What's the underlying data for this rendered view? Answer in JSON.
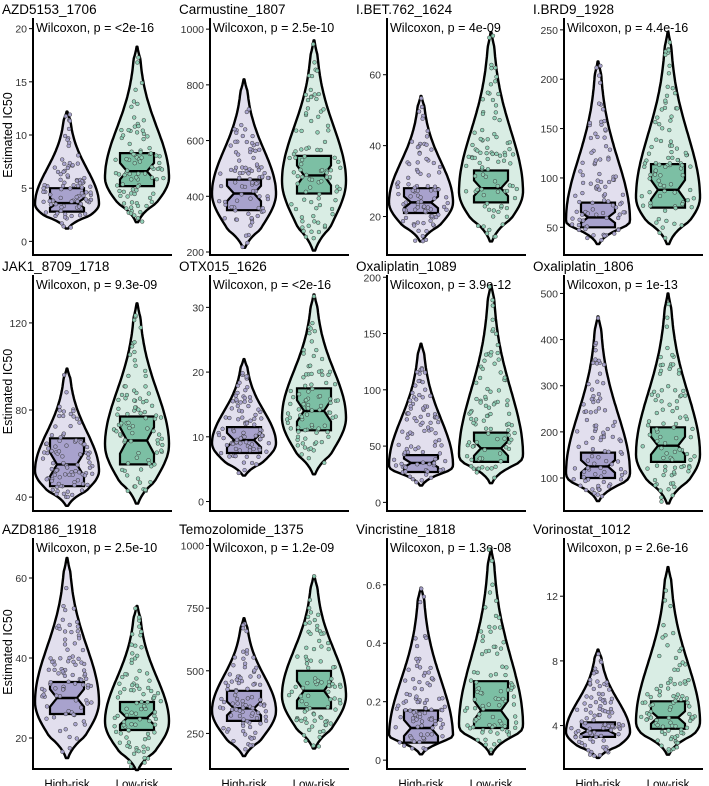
{
  "figure": {
    "y_axis_label": "Estimated IC50",
    "group_labels": [
      "High-risk",
      "Low-risk"
    ]
  },
  "colors": {
    "high_fill": "#a8a2cd",
    "high_violin": "#e2dfee",
    "high_point": "#a6a1cc",
    "low_fill": "#7cbfa4",
    "low_violin": "#d9ede4",
    "low_point": "#8ed0b5",
    "outline": "#000000"
  },
  "chart_data": [
    {
      "type": "violin",
      "title": "AZD5153_1706",
      "test": "Wilcoxon, p = <2e-16",
      "ylabel": "Estimated IC50",
      "ylim": [
        -1,
        21
      ],
      "yticks": [
        0,
        5,
        10,
        15,
        20
      ],
      "categories": [
        "High-risk",
        "Low-risk"
      ],
      "series": [
        {
          "name": "High-risk",
          "min": 1.2,
          "q1": 2.8,
          "median": 3.6,
          "q3": 5,
          "max": 12.2,
          "mode": 3.5
        },
        {
          "name": "Low-risk",
          "min": 1.8,
          "q1": 5.2,
          "median": 6.6,
          "q3": 8.3,
          "max": 18.3,
          "mode": 6
        }
      ]
    },
    {
      "type": "violin",
      "title": "Carmustine_1807",
      "test": "Wilcoxon, p = 2.5e-10",
      "ylabel": "",
      "ylim": [
        200,
        1040
      ],
      "yticks": [
        200,
        400,
        600,
        800,
        1000
      ],
      "categories": [
        "High-risk",
        "Low-risk"
      ],
      "series": [
        {
          "name": "High-risk",
          "min": 215,
          "q1": 350,
          "median": 410,
          "q3": 460,
          "max": 820,
          "mode": 410
        },
        {
          "name": "Low-risk",
          "min": 205,
          "q1": 410,
          "median": 475,
          "q3": 545,
          "max": 960,
          "mode": 455
        }
      ]
    },
    {
      "type": "violin",
      "title": "I.BET.762_1624",
      "test": "Wilcoxon, p = 4e-09",
      "ylabel": "",
      "ylim": [
        10,
        76
      ],
      "yticks": [
        20,
        40,
        60
      ],
      "categories": [
        "High-risk",
        "Low-risk"
      ],
      "series": [
        {
          "name": "High-risk",
          "min": 13,
          "q1": 21,
          "median": 24,
          "q3": 28,
          "max": 54,
          "mode": 24
        },
        {
          "name": "Low-risk",
          "min": 13,
          "q1": 24,
          "median": 28,
          "q3": 33,
          "max": 72,
          "mode": 27
        }
      ]
    },
    {
      "type": "violin",
      "title": "I.BRD9_1928",
      "test": "Wilcoxon, p = 4.4e-16",
      "ylabel": "",
      "ylim": [
        25,
        262
      ],
      "yticks": [
        50,
        100,
        150,
        200,
        250
      ],
      "categories": [
        "High-risk",
        "Low-risk"
      ],
      "series": [
        {
          "name": "High-risk",
          "min": 33,
          "q1": 50,
          "median": 60,
          "q3": 75,
          "max": 218,
          "mode": 57
        },
        {
          "name": "Low-risk",
          "min": 33,
          "q1": 70,
          "median": 88,
          "q3": 114,
          "max": 248,
          "mode": 80
        }
      ]
    },
    {
      "type": "violin",
      "title": "JAK1_8709_1718",
      "test": "Wilcoxon, p = 9.3e-09",
      "ylabel": "Estimated IC50",
      "ylim": [
        35,
        142
      ],
      "yticks": [
        40,
        80,
        120
      ],
      "categories": [
        "High-risk",
        "Low-risk"
      ],
      "series": [
        {
          "name": "High-risk",
          "min": 36,
          "q1": 45,
          "median": 55,
          "q3": 67,
          "max": 99,
          "mode": 52
        },
        {
          "name": "Low-risk",
          "min": 37,
          "q1": 55,
          "median": 66,
          "q3": 77,
          "max": 129,
          "mode": 64
        }
      ]
    },
    {
      "type": "violin",
      "title": "OTX015_1626",
      "test": "Wilcoxon, p = <2e-16",
      "ylabel": "",
      "ylim": [
        -1,
        35
      ],
      "yticks": [
        0,
        10,
        20,
        30
      ],
      "categories": [
        "High-risk",
        "Low-risk"
      ],
      "series": [
        {
          "name": "High-risk",
          "min": 4,
          "q1": 7.5,
          "median": 9.5,
          "q3": 11.5,
          "max": 22,
          "mode": 9
        },
        {
          "name": "Low-risk",
          "min": 4.2,
          "q1": 11,
          "median": 14,
          "q3": 17.5,
          "max": 32,
          "mode": 13
        }
      ]
    },
    {
      "type": "violin",
      "title": "Oxaliplatin_1089",
      "test": "Wilcoxon, p = 3.9e-12",
      "ylabel": "",
      "ylim": [
        -5,
        202
      ],
      "yticks": [
        0,
        50,
        100,
        150,
        200
      ],
      "categories": [
        "High-risk",
        "Low-risk"
      ],
      "series": [
        {
          "name": "High-risk",
          "min": 15,
          "q1": 27,
          "median": 35,
          "q3": 42,
          "max": 141,
          "mode": 33
        },
        {
          "name": "Low-risk",
          "min": 17,
          "q1": 36,
          "median": 48,
          "q3": 62,
          "max": 193,
          "mode": 42
        }
      ]
    },
    {
      "type": "violin",
      "title": "Oxaliplatin_1806",
      "test": "Wilcoxon, p = 1e-13",
      "ylabel": "",
      "ylim": [
        35,
        540
      ],
      "yticks": [
        100,
        200,
        300,
        400,
        500
      ],
      "categories": [
        "High-risk",
        "Low-risk"
      ],
      "series": [
        {
          "name": "High-risk",
          "min": 50,
          "q1": 100,
          "median": 125,
          "q3": 155,
          "max": 450,
          "mode": 110
        },
        {
          "name": "Low-risk",
          "min": 45,
          "q1": 135,
          "median": 170,
          "q3": 210,
          "max": 500,
          "mode": 150
        }
      ]
    },
    {
      "type": "violin",
      "title": "AZD8186_1918",
      "test": "Wilcoxon, p = 2.5e-10",
      "ylabel": "Estimated IC50",
      "ylim": [
        13,
        70
      ],
      "yticks": [
        20,
        40,
        60
      ],
      "categories": [
        "High-risk",
        "Low-risk"
      ],
      "series": [
        {
          "name": "High-risk",
          "min": 15,
          "q1": 26,
          "median": 30,
          "q3": 34,
          "max": 65,
          "mode": 29
        },
        {
          "name": "Low-risk",
          "min": 12,
          "q1": 22,
          "median": 25,
          "q3": 29,
          "max": 53,
          "mode": 24
        }
      ]
    },
    {
      "type": "violin",
      "title": "Temozolomide_1375",
      "test": "Wilcoxon, p = 1.2e-09",
      "ylabel": "",
      "ylim": [
        120,
        1030
      ],
      "yticks": [
        250,
        500,
        750,
        1000
      ],
      "categories": [
        "High-risk",
        "Low-risk"
      ],
      "series": [
        {
          "name": "High-risk",
          "min": 160,
          "q1": 300,
          "median": 350,
          "q3": 420,
          "max": 710,
          "mode": 340
        },
        {
          "name": "Low-risk",
          "min": 190,
          "q1": 350,
          "median": 420,
          "q3": 500,
          "max": 880,
          "mode": 400
        }
      ]
    },
    {
      "type": "violin",
      "title": "Vincristine_1818",
      "test": "Wilcoxon, p = 1.3e-08",
      "ylabel": "",
      "ylim": [
        -0.02,
        0.76
      ],
      "yticks": [
        0.0,
        0.2,
        0.4,
        0.6
      ],
      "categories": [
        "High-risk",
        "Low-risk"
      ],
      "series": [
        {
          "name": "High-risk",
          "min": 0.02,
          "q1": 0.06,
          "median": 0.11,
          "q3": 0.17,
          "max": 0.59,
          "mode": 0.08
        },
        {
          "name": "Low-risk",
          "min": 0.02,
          "q1": 0.11,
          "median": 0.17,
          "q3": 0.27,
          "max": 0.72,
          "mode": 0.12
        }
      ]
    },
    {
      "type": "violin",
      "title": "Vorinostat_1012",
      "test": "Wilcoxon, p = 2.6e-16",
      "ylabel": "",
      "ylim": [
        1.5,
        15.6
      ],
      "yticks": [
        4,
        8,
        12
      ],
      "categories": [
        "High-risk",
        "Low-risk"
      ],
      "series": [
        {
          "name": "High-risk",
          "min": 2,
          "q1": 3.3,
          "median": 3.7,
          "q3": 4.2,
          "max": 8.7,
          "mode": 3.6
        },
        {
          "name": "Low-risk",
          "min": 2.2,
          "q1": 3.8,
          "median": 4.5,
          "q3": 5.5,
          "max": 13.8,
          "mode": 4.2
        }
      ]
    }
  ]
}
